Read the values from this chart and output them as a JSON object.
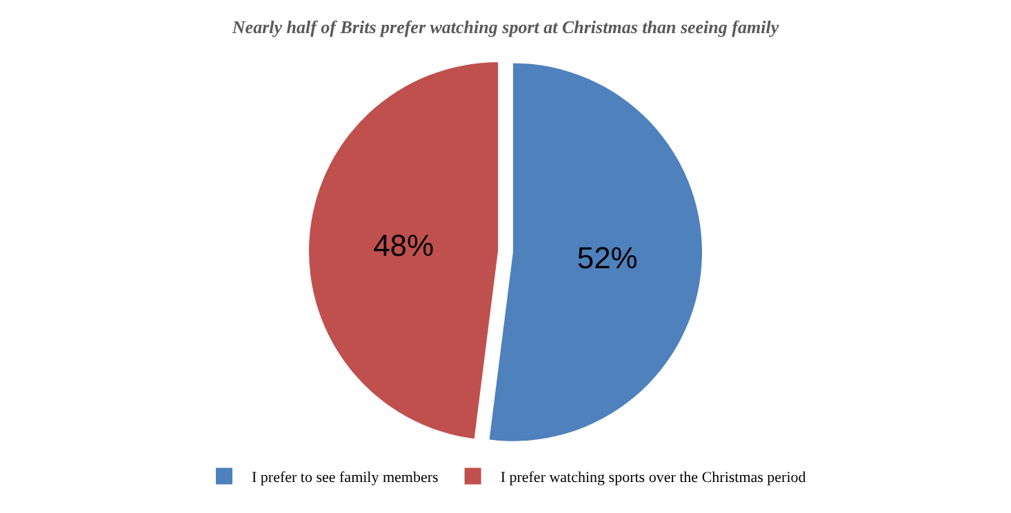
{
  "chart_data": {
    "type": "pie",
    "title": "Nearly half of Brits prefer watching sport at Christmas than seeing family",
    "categories": [
      "I prefer to see family members",
      "I prefer watching sports over the Christmas period"
    ],
    "values": [
      52,
      48
    ],
    "colors": [
      "#4f81bd",
      "#c0504d"
    ],
    "value_labels": [
      "52%",
      "48%"
    ],
    "legend": "bottom"
  }
}
